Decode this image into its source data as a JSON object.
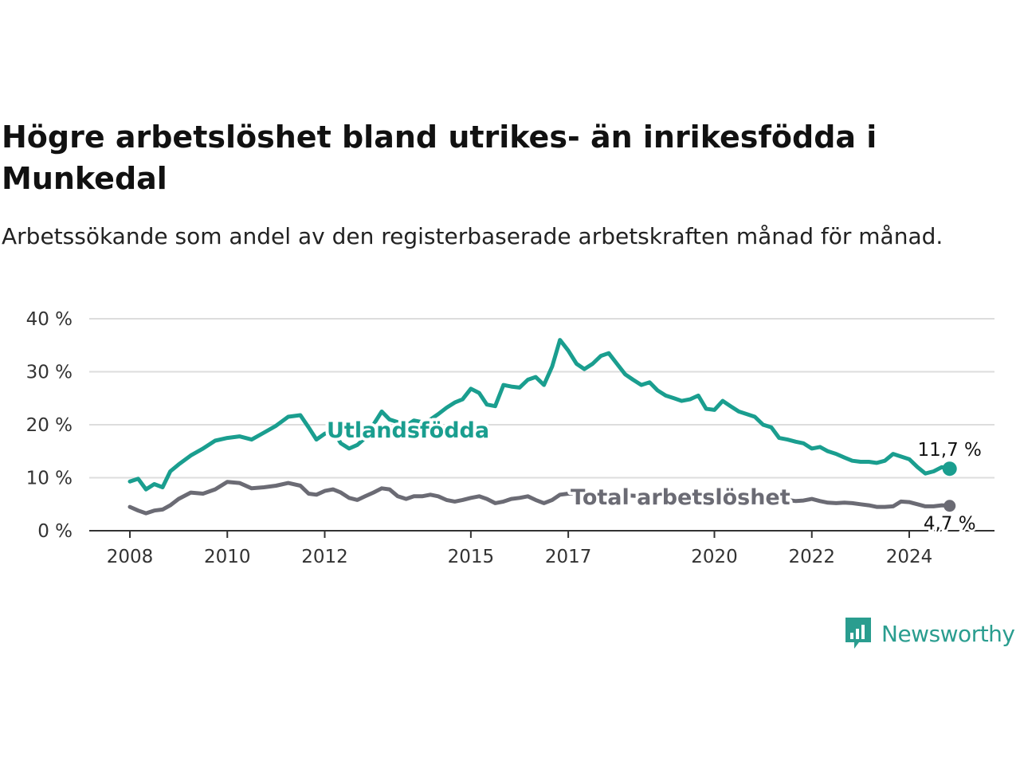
{
  "title": "Högre arbetslöshet bland utrikes- än inrikesfödda i Munkedal",
  "subtitle": "Arbetssökande som andel av den registerbaserade arbetskraften månad för månad.",
  "brand": {
    "name": "Newsworthy",
    "icon": "newsworthy-logo-icon"
  },
  "chart_data": {
    "type": "line",
    "ylim": [
      0,
      40
    ],
    "yticks": [
      0,
      10,
      20,
      30,
      40
    ],
    "ytick_labels": [
      "0 %",
      "10 %",
      "20 %",
      "30 %",
      "40 %"
    ],
    "xlim": [
      2008,
      2024.9
    ],
    "xticks": [
      2008,
      2010,
      2012,
      2015,
      2017,
      2020,
      2022,
      2024
    ],
    "xtick_labels": [
      "2008",
      "2010",
      "2012",
      "2015",
      "2017",
      "2020",
      "2022",
      "2024"
    ],
    "grid": true,
    "series": [
      {
        "name": "Utlandsfödda",
        "color": "#1a9e8f",
        "end_label": "11,7 %",
        "end_marker": true,
        "points": [
          [
            2008.0,
            9.3
          ],
          [
            2008.17,
            9.8
          ],
          [
            2008.33,
            7.8
          ],
          [
            2008.5,
            8.8
          ],
          [
            2008.67,
            8.2
          ],
          [
            2008.83,
            11.2
          ],
          [
            2009.0,
            12.5
          ],
          [
            2009.25,
            14.2
          ],
          [
            2009.5,
            15.5
          ],
          [
            2009.75,
            17.0
          ],
          [
            2010.0,
            17.5
          ],
          [
            2010.25,
            17.8
          ],
          [
            2010.5,
            17.2
          ],
          [
            2010.75,
            18.5
          ],
          [
            2011.0,
            19.8
          ],
          [
            2011.25,
            21.5
          ],
          [
            2011.5,
            21.8
          ],
          [
            2011.67,
            19.5
          ],
          [
            2011.83,
            17.2
          ],
          [
            2012.0,
            18.3
          ],
          [
            2012.17,
            18.8
          ],
          [
            2012.33,
            16.5
          ],
          [
            2012.5,
            15.5
          ],
          [
            2012.67,
            16.2
          ],
          [
            2012.83,
            17.5
          ],
          [
            2013.0,
            20.0
          ],
          [
            2013.17,
            22.5
          ],
          [
            2013.33,
            21.0
          ],
          [
            2013.5,
            20.5
          ],
          [
            2013.67,
            19.8
          ],
          [
            2013.83,
            20.8
          ],
          [
            2014.0,
            20.5
          ],
          [
            2014.17,
            21.0
          ],
          [
            2014.33,
            22.0
          ],
          [
            2014.5,
            23.2
          ],
          [
            2014.67,
            24.2
          ],
          [
            2014.83,
            24.8
          ],
          [
            2015.0,
            26.8
          ],
          [
            2015.17,
            26.0
          ],
          [
            2015.33,
            23.8
          ],
          [
            2015.5,
            23.5
          ],
          [
            2015.67,
            27.5
          ],
          [
            2015.83,
            27.2
          ],
          [
            2016.0,
            27.0
          ],
          [
            2016.17,
            28.5
          ],
          [
            2016.33,
            29.0
          ],
          [
            2016.5,
            27.5
          ],
          [
            2016.67,
            31.0
          ],
          [
            2016.83,
            36.0
          ],
          [
            2017.0,
            34.0
          ],
          [
            2017.17,
            31.5
          ],
          [
            2017.33,
            30.5
          ],
          [
            2017.5,
            31.5
          ],
          [
            2017.67,
            33.0
          ],
          [
            2017.83,
            33.5
          ],
          [
            2018.0,
            31.5
          ],
          [
            2018.17,
            29.5
          ],
          [
            2018.33,
            28.5
          ],
          [
            2018.5,
            27.5
          ],
          [
            2018.67,
            28.0
          ],
          [
            2018.83,
            26.5
          ],
          [
            2019.0,
            25.5
          ],
          [
            2019.17,
            25.0
          ],
          [
            2019.33,
            24.5
          ],
          [
            2019.5,
            24.8
          ],
          [
            2019.67,
            25.5
          ],
          [
            2019.83,
            23.0
          ],
          [
            2020.0,
            22.8
          ],
          [
            2020.17,
            24.5
          ],
          [
            2020.33,
            23.5
          ],
          [
            2020.5,
            22.5
          ],
          [
            2020.67,
            22.0
          ],
          [
            2020.83,
            21.5
          ],
          [
            2021.0,
            20.0
          ],
          [
            2021.17,
            19.5
          ],
          [
            2021.33,
            17.5
          ],
          [
            2021.5,
            17.2
          ],
          [
            2021.67,
            16.8
          ],
          [
            2021.83,
            16.5
          ],
          [
            2022.0,
            15.5
          ],
          [
            2022.17,
            15.8
          ],
          [
            2022.33,
            15.0
          ],
          [
            2022.5,
            14.5
          ],
          [
            2022.67,
            13.8
          ],
          [
            2022.83,
            13.2
          ],
          [
            2023.0,
            13.0
          ],
          [
            2023.17,
            13.0
          ],
          [
            2023.33,
            12.8
          ],
          [
            2023.5,
            13.2
          ],
          [
            2023.67,
            14.5
          ],
          [
            2023.83,
            14.0
          ],
          [
            2024.0,
            13.5
          ],
          [
            2024.17,
            12.0
          ],
          [
            2024.33,
            10.8
          ],
          [
            2024.5,
            11.2
          ],
          [
            2024.67,
            12.0
          ],
          [
            2024.83,
            11.7
          ]
        ]
      },
      {
        "name": "Total arbetslöshet",
        "color": "#6b6b74",
        "end_label": "4,7 %",
        "end_marker": true,
        "points": [
          [
            2008.0,
            4.5
          ],
          [
            2008.17,
            3.8
          ],
          [
            2008.33,
            3.3
          ],
          [
            2008.5,
            3.8
          ],
          [
            2008.67,
            4.0
          ],
          [
            2008.83,
            4.8
          ],
          [
            2009.0,
            6.0
          ],
          [
            2009.25,
            7.2
          ],
          [
            2009.5,
            7.0
          ],
          [
            2009.75,
            7.8
          ],
          [
            2010.0,
            9.2
          ],
          [
            2010.25,
            9.0
          ],
          [
            2010.5,
            8.0
          ],
          [
            2010.75,
            8.2
          ],
          [
            2011.0,
            8.5
          ],
          [
            2011.25,
            9.0
          ],
          [
            2011.5,
            8.5
          ],
          [
            2011.67,
            7.0
          ],
          [
            2011.83,
            6.8
          ],
          [
            2012.0,
            7.5
          ],
          [
            2012.17,
            7.8
          ],
          [
            2012.33,
            7.2
          ],
          [
            2012.5,
            6.2
          ],
          [
            2012.67,
            5.8
          ],
          [
            2012.83,
            6.5
          ],
          [
            2013.0,
            7.2
          ],
          [
            2013.17,
            8.0
          ],
          [
            2013.33,
            7.8
          ],
          [
            2013.5,
            6.5
          ],
          [
            2013.67,
            6.0
          ],
          [
            2013.83,
            6.5
          ],
          [
            2014.0,
            6.5
          ],
          [
            2014.17,
            6.8
          ],
          [
            2014.33,
            6.5
          ],
          [
            2014.5,
            5.8
          ],
          [
            2014.67,
            5.5
          ],
          [
            2014.83,
            5.8
          ],
          [
            2015.0,
            6.2
          ],
          [
            2015.17,
            6.5
          ],
          [
            2015.33,
            6.0
          ],
          [
            2015.5,
            5.2
          ],
          [
            2015.67,
            5.5
          ],
          [
            2015.83,
            6.0
          ],
          [
            2016.0,
            6.2
          ],
          [
            2016.17,
            6.5
          ],
          [
            2016.33,
            5.8
          ],
          [
            2016.5,
            5.2
          ],
          [
            2016.67,
            5.8
          ],
          [
            2016.83,
            6.8
          ],
          [
            2017.0,
            7.0
          ],
          [
            2017.5,
            7.0
          ],
          [
            2018.0,
            6.8
          ],
          [
            2018.5,
            6.5
          ],
          [
            2019.0,
            6.4
          ],
          [
            2019.5,
            6.2
          ],
          [
            2020.0,
            6.5
          ],
          [
            2020.5,
            6.4
          ],
          [
            2021.0,
            6.2
          ],
          [
            2021.33,
            6.0
          ],
          [
            2021.5,
            5.8
          ],
          [
            2021.67,
            5.6
          ],
          [
            2021.83,
            5.7
          ],
          [
            2022.0,
            6.0
          ],
          [
            2022.17,
            5.6
          ],
          [
            2022.33,
            5.3
          ],
          [
            2022.5,
            5.2
          ],
          [
            2022.67,
            5.3
          ],
          [
            2022.83,
            5.2
          ],
          [
            2023.0,
            5.0
          ],
          [
            2023.17,
            4.8
          ],
          [
            2023.33,
            4.5
          ],
          [
            2023.5,
            4.5
          ],
          [
            2023.67,
            4.6
          ],
          [
            2023.83,
            5.5
          ],
          [
            2024.0,
            5.4
          ],
          [
            2024.17,
            5.0
          ],
          [
            2024.33,
            4.6
          ],
          [
            2024.5,
            4.6
          ],
          [
            2024.67,
            4.8
          ],
          [
            2024.83,
            4.7
          ]
        ]
      }
    ]
  }
}
